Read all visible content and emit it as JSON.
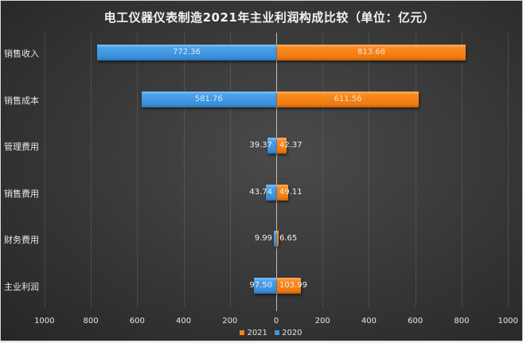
{
  "chart_data": {
    "type": "bar",
    "orientation": "horizontal",
    "layout": "butterfly",
    "title": "电工仪器仪表制造2021年主业利润构成比较（单位：亿元）",
    "categories": [
      "销售收入",
      "销售成本",
      "管理费用",
      "销售费用",
      "财务费用",
      "主业利润"
    ],
    "series": [
      {
        "name": "2020",
        "side": "left",
        "color": "#3f97e0",
        "values": [
          772.36,
          581.76,
          39.37,
          43.74,
          9.99,
          97.5
        ],
        "labels": [
          "772.36",
          "581.76",
          "39.37",
          "43.74",
          "9.99",
          "97.50"
        ]
      },
      {
        "name": "2021",
        "side": "right",
        "color": "#f7831a",
        "values": [
          813.68,
          611.56,
          42.37,
          49.11,
          6.65,
          103.99
        ],
        "labels": [
          "813.68",
          "611.56",
          "42.37",
          "49.11",
          "6.65",
          "103.99"
        ]
      }
    ],
    "xlabel": "",
    "ylabel": "",
    "xlim": [
      -1000,
      1000
    ],
    "x_ticks": [
      "1000",
      "800",
      "600",
      "400",
      "200",
      "0",
      "200",
      "400",
      "600",
      "800",
      "1000"
    ],
    "grid": true,
    "legend": {
      "position": "bottom",
      "entries": [
        "2021",
        "2020"
      ]
    }
  },
  "colors": {
    "series_2020": "#3f97e0",
    "series_2021": "#f7831a",
    "background": "#3a3a3a",
    "text": "#e8e8e8"
  }
}
